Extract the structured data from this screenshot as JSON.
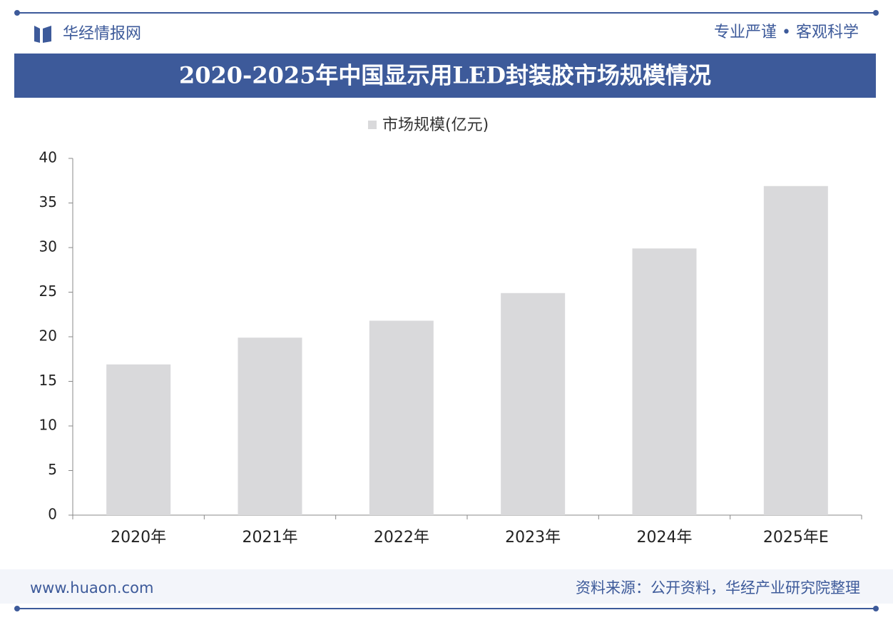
{
  "header": {
    "brand": "华经情报网",
    "slogan": "专业严谨 • 客观科学"
  },
  "chart_data": {
    "type": "bar",
    "title": "2020-2025年中国显示用LED封装胶市场规模情况",
    "categories": [
      "2020年",
      "2021年",
      "2022年",
      "2023年",
      "2024年",
      "2025年E"
    ],
    "series": [
      {
        "name": "市场规模(亿元)",
        "color": "#d9d9db",
        "values": [
          16.9,
          19.9,
          21.8,
          24.9,
          29.9,
          36.9
        ]
      }
    ],
    "ylim": [
      0,
      40
    ],
    "yticks": [
      0,
      5,
      10,
      15,
      20,
      25,
      30,
      35,
      40
    ],
    "grid": false
  },
  "footer": {
    "url": "www.huaon.com",
    "source": "资料来源：公开资料，华经产业研究院整理"
  }
}
